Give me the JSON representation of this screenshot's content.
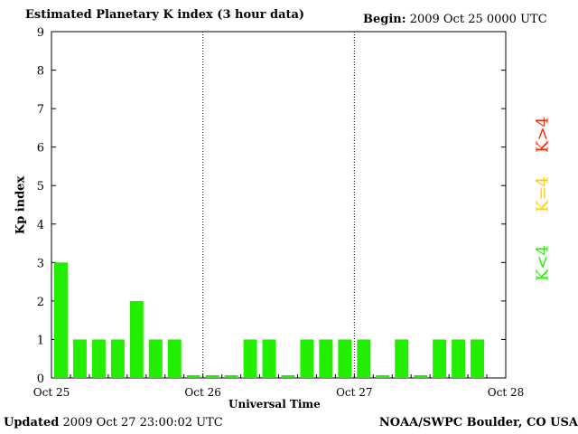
{
  "header": {
    "title": "Estimated Planetary K index (3 hour data)",
    "begin_label": "Begin:",
    "begin_value": "2009 Oct 25 0000 UTC"
  },
  "footer": {
    "updated_label": "Updated",
    "updated_value": "2009 Oct 27 23:00:02 UTC",
    "credit": "NOAA/SWPC Boulder, CO USA"
  },
  "legend": {
    "high": {
      "label": "K>4",
      "color": "#ff2200"
    },
    "mid": {
      "label": "K=4",
      "color": "#ffcc00"
    },
    "low": {
      "label": "K<4",
      "color": "#22ee00"
    }
  },
  "chart_data": {
    "type": "bar",
    "title": "Estimated Planetary K index (3 hour data)",
    "xlabel": "Universal Time",
    "ylabel": "Kp index",
    "ylim": [
      0,
      9
    ],
    "yticks": [
      0,
      1,
      2,
      3,
      4,
      5,
      6,
      7,
      8,
      9
    ],
    "xlim": [
      "Oct 25",
      "Oct 28"
    ],
    "xticks": [
      "Oct 25",
      "Oct 26",
      "Oct 27",
      "Oct 28"
    ],
    "day_dividers": [
      "Oct 26",
      "Oct 27"
    ],
    "interval_hours": 3,
    "bar_color": "#22ee00",
    "series": [
      {
        "values": [
          3,
          1,
          1,
          1,
          2,
          1,
          1,
          0,
          0,
          0,
          1,
          1,
          0,
          1,
          1,
          1,
          1,
          0,
          1,
          0,
          1,
          1,
          1
        ]
      }
    ]
  }
}
